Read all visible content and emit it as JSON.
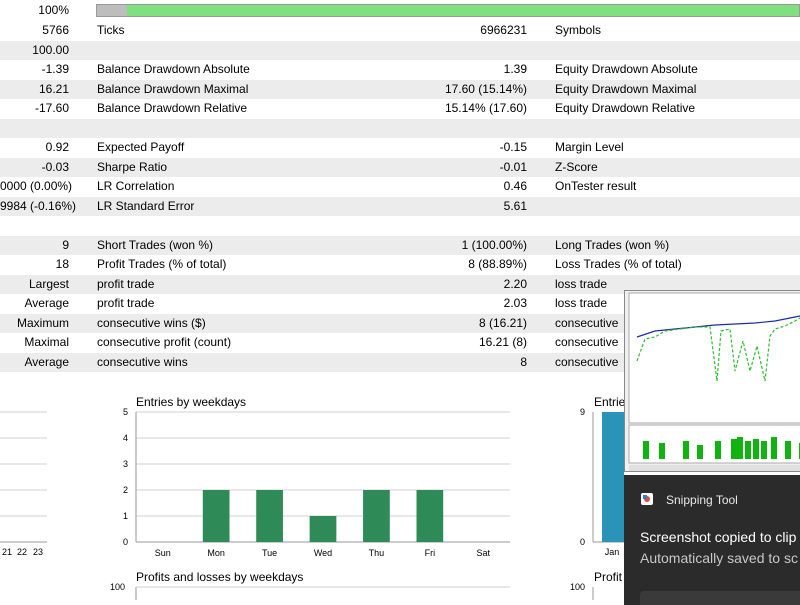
{
  "progress": {
    "percent_label": "100%",
    "fraction": 1.0
  },
  "rows": [
    {
      "c1": "5766",
      "c2": "Ticks",
      "c3": "6966231",
      "c4": "Symbols",
      "alt": false
    },
    {
      "c1": "100.00",
      "c2": "",
      "c3": "",
      "c4": "",
      "alt": true
    },
    {
      "c1": "-1.39",
      "c2": "Balance Drawdown Absolute",
      "c3": "1.39",
      "c4": "Equity Drawdown Absolute",
      "alt": false
    },
    {
      "c1": "16.21",
      "c2": "Balance Drawdown Maximal",
      "c3": "17.60 (15.14%)",
      "c4": "Equity Drawdown Maximal",
      "alt": true
    },
    {
      "c1": "-17.60",
      "c2": "Balance Drawdown Relative",
      "c3": "15.14% (17.60)",
      "c4": "Equity Drawdown Relative",
      "alt": false
    },
    {
      "c1": "",
      "c2": "",
      "c3": "",
      "c4": "",
      "alt": true
    },
    {
      "c1": "0.92",
      "c2": "Expected Payoff",
      "c3": "-0.15",
      "c4": "Margin Level",
      "alt": false
    },
    {
      "c1": "-0.03",
      "c2": "Sharpe Ratio",
      "c3": "-0.01",
      "c4": "Z-Score",
      "alt": true
    },
    {
      "c1": "0000 (0.00%)",
      "c2": "LR Correlation",
      "c3": "0.46",
      "c4": "OnTester result",
      "alt": false
    },
    {
      "c1": "9984 (-0.16%)",
      "c2": "LR Standard Error",
      "c3": "5.61",
      "c4": "",
      "alt": true
    },
    {
      "c1": "",
      "c2": "",
      "c3": "",
      "c4": "",
      "alt": false
    },
    {
      "c1": "9",
      "c2": "Short Trades (won %)",
      "c3": "1 (100.00%)",
      "c4": "Long Trades (won %)",
      "alt": true
    },
    {
      "c1": "18",
      "c2": "Profit Trades (% of total)",
      "c3": "8 (88.89%)",
      "c4": "Loss Trades (% of total)",
      "alt": false
    },
    {
      "c1": "Largest",
      "c2": "profit trade",
      "c3": "2.20",
      "c4": "loss trade",
      "alt": true
    },
    {
      "c1": "Average",
      "c2": "profit trade",
      "c3": "2.03",
      "c4": "loss trade",
      "alt": false
    },
    {
      "c1": "Maximum",
      "c2": "consecutive wins ($)",
      "c3": "8 (16.21)",
      "c4": "consecutive",
      "alt": true
    },
    {
      "c1": "Maximal",
      "c2": "consecutive profit (count)",
      "c3": "16.21 (8)",
      "c4": "consecutive",
      "alt": false
    },
    {
      "c1": "Average",
      "c2": "consecutive wins",
      "c3": "8",
      "c4": "consecutive",
      "alt": true
    },
    {
      "c1": "",
      "c2": "",
      "c3": "",
      "c4": "",
      "alt": false
    }
  ],
  "charts": {
    "left_partial_xticks": [
      "21",
      "22",
      "23"
    ],
    "right_partial": {
      "title": "Entrie",
      "y_top": "9",
      "y_zero": "0",
      "x_label": "Jan"
    },
    "profits_title": "Profits and losses by weekdays",
    "profits_left_ytop": "100",
    "profits_right": {
      "title": "Profit",
      "ytop": "100"
    }
  },
  "chart_data": {
    "type": "bar",
    "title": "Entries by weekdays",
    "categories": [
      "Sun",
      "Mon",
      "Tue",
      "Wed",
      "Thu",
      "Fri",
      "Sat"
    ],
    "values": [
      0,
      2,
      2,
      1,
      2,
      2,
      0
    ],
    "ylim": [
      0,
      5
    ],
    "yticks": [
      "0",
      "1",
      "2",
      "3",
      "4",
      "5"
    ],
    "bar_color": "#2e8b57",
    "grid": true
  },
  "snipping": {
    "app": "Snipping Tool",
    "title": "Screenshot copied to clip",
    "subtitle": "Automatically saved to sc"
  }
}
